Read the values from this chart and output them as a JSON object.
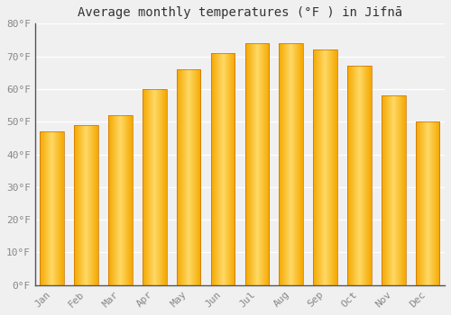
{
  "title": "Average monthly temperatures (°F ) in Jifnā",
  "months": [
    "Jan",
    "Feb",
    "Mar",
    "Apr",
    "May",
    "Jun",
    "Jul",
    "Aug",
    "Sep",
    "Oct",
    "Nov",
    "Dec"
  ],
  "values": [
    47,
    49,
    52,
    60,
    66,
    71,
    74,
    74,
    72,
    67,
    58,
    50
  ],
  "bar_color_edge": "#F5A800",
  "bar_color_center": "#FFD966",
  "ylim": [
    0,
    80
  ],
  "yticks": [
    0,
    10,
    20,
    30,
    40,
    50,
    60,
    70,
    80
  ],
  "ylabel_format": "°F",
  "background_color": "#f0f0f0",
  "grid_color": "#ffffff",
  "title_fontsize": 10,
  "tick_fontsize": 8,
  "bar_width": 0.7
}
